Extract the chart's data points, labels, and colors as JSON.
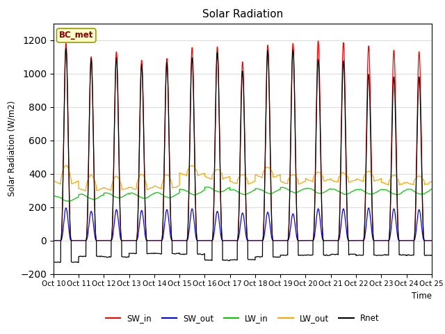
{
  "title": "Solar Radiation",
  "ylabel": "Solar Radiation (W/m2)",
  "xlabel": "Time",
  "ylim": [
    -200,
    1300
  ],
  "yticks": [
    -200,
    0,
    200,
    400,
    600,
    800,
    1000,
    1200
  ],
  "n_days": 15,
  "points_per_day": 288,
  "station_label": "BC_met",
  "colors": {
    "SW_in": "#FF0000",
    "SW_out": "#0000FF",
    "LW_in": "#00CC00",
    "LW_out": "#FFA500",
    "Rnet": "#000000"
  },
  "xtick_labels": [
    "Oct 10",
    "Oct 11",
    "Oct 12",
    "Oct 13",
    "Oct 14",
    "Oct 15",
    "Oct 16",
    "Oct 17",
    "Oct 18",
    "Oct 19",
    "Oct 20",
    "Oct 21",
    "Oct 22",
    "Oct 23",
    "Oct 24",
    "Oct 25"
  ],
  "SW_in_peaks": [
    1180,
    1100,
    1130,
    1080,
    1090,
    1155,
    1160,
    1070,
    1170,
    1180,
    1195,
    1185,
    1165,
    1140,
    1130
  ],
  "SW_out_peaks": [
    195,
    175,
    185,
    180,
    185,
    190,
    175,
    165,
    170,
    160,
    190,
    190,
    195,
    190,
    185
  ],
  "LW_in_base": [
    250,
    262,
    270,
    268,
    272,
    290,
    305,
    290,
    295,
    302,
    298,
    292,
    292,
    290,
    292
  ],
  "LW_out_base": [
    355,
    315,
    318,
    322,
    328,
    405,
    385,
    355,
    395,
    355,
    370,
    365,
    370,
    350,
    350
  ],
  "LW_out_day_peak": [
    450,
    390,
    385,
    395,
    395,
    450,
    425,
    395,
    440,
    395,
    410,
    405,
    415,
    390,
    385
  ],
  "Rnet_peaks": [
    1150,
    1085,
    1095,
    1055,
    1065,
    1095,
    1125,
    1015,
    1135,
    1145,
    1085,
    1075,
    995,
    980,
    980
  ],
  "Rnet_night": [
    -130,
    -95,
    -98,
    -78,
    -78,
    -82,
    -118,
    -115,
    -98,
    -88,
    -88,
    -82,
    -88,
    -88,
    -88
  ]
}
